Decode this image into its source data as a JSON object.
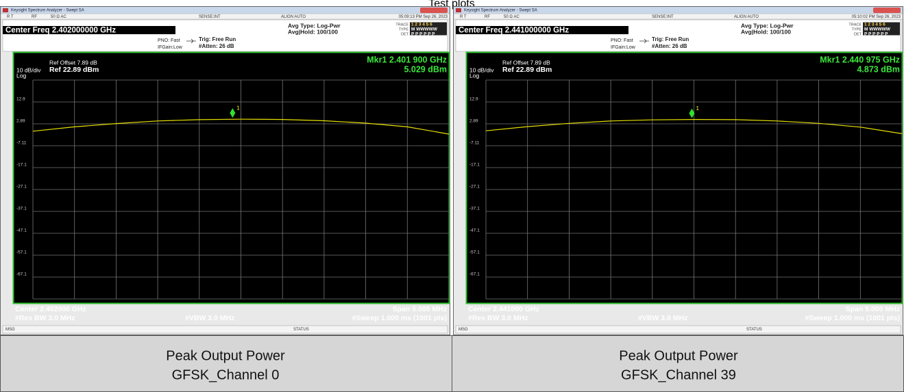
{
  "title": "Test plots",
  "panels": [
    {
      "window_title": "Keysight Spectrum Analyzer - Swept SA",
      "status_bar": [
        "R T",
        "RF",
        "50 Ω  AC",
        "SENSE:INT",
        "ALIGN AUTO",
        "05:09:13 PM Sep 26, 2023"
      ],
      "center_freq": "Center Freq 2.402000000 GHz",
      "settings": [
        "PNO: Fast",
        "IFGain:Low",
        "Trig: Free Run",
        "#Atten: 26 dB",
        "Avg Type: Log-Pwr",
        "Avg|Hold: 100/100"
      ],
      "trace_header": [
        "TRACE",
        "TYPE",
        "DET"
      ],
      "trace_rows": [
        "1 2 3 4 5 6",
        "M WWWWW",
        "P P P P P P"
      ],
      "chart": {
        "type": "line",
        "scale": "10 dB/div",
        "scale_type": "Log",
        "ref_offset": "Ref Offset 7.89 dB",
        "ref_level": "Ref 22.89 dBm",
        "xlim": [
          -2.5,
          2.5
        ],
        "xticks": [
          -2.5,
          -2,
          -1.5,
          -1,
          -0.5,
          0,
          0.5,
          1,
          1.5,
          2,
          2.5
        ],
        "ylim": [
          -77.11,
          22.89
        ],
        "yticks": [
          {
            "value": 12.89,
            "label": "12.9"
          },
          2.89,
          -7.11,
          {
            "value": -17.11,
            "label": "-17.1"
          },
          {
            "value": -27.11,
            "label": "-27.1"
          },
          {
            "value": -37.11,
            "label": "-37.1"
          },
          {
            "value": -47.11,
            "label": "-47.1"
          },
          {
            "value": -57.11,
            "label": "-57.1"
          },
          {
            "value": -67.11,
            "label": "-67.1"
          }
        ],
        "x": [
          -2.5,
          -2,
          -1.5,
          -1,
          -0.5,
          0,
          0.5,
          1,
          1.5,
          2,
          2.5
        ],
        "values": [
          -0.5,
          1.5,
          3,
          4.2,
          4.8,
          5.0,
          4.9,
          4.3,
          3.2,
          1.5,
          -1.8
        ],
        "color": "#e8e000",
        "marker": {
          "name": "1",
          "label": "Mkr1 2.401 900 GHz",
          "x": -0.1,
          "value": 5.029,
          "value_label": "5.029 dBm"
        }
      },
      "center": "Center 2.402000 GHz",
      "span": "Span 5.000 MHz",
      "res_bw": "#Res BW 3.0 MHz",
      "vbw": "#VBW 3.0 MHz",
      "sweep": "#Sweep  1.000 ms (1001 pts)",
      "msg": "MSG",
      "status": "STATUS",
      "caption": [
        "Peak Output Power",
        "GFSK_Channel 0"
      ]
    },
    {
      "window_title": "Keysight Spectrum Analyzer - Swept SA",
      "status_bar": [
        "R T",
        "RF",
        "50 Ω  AC",
        "SENSE:INT",
        "ALIGN AUTO",
        "05:10:02 PM Sep 26, 2023"
      ],
      "center_freq": "Center Freq 2.441000000 GHz",
      "settings": [
        "PNO: Fast",
        "IFGain:Low",
        "Trig: Free Run",
        "#Atten: 26 dB",
        "Avg Type: Log-Pwr",
        "Avg|Hold: 100/100"
      ],
      "trace_header": [
        "TRACE",
        "TYPE",
        "DET"
      ],
      "trace_rows": [
        "1 2 3 4 5 6",
        "M WWWWW",
        "P P P P P P"
      ],
      "chart": {
        "type": "line",
        "scale": "10 dB/div",
        "scale_type": "Log",
        "ref_offset": "Ref Offset 7.89 dB",
        "ref_level": "Ref 22.89 dBm",
        "xlim": [
          -2.5,
          2.5
        ],
        "xticks": [
          -2.5,
          -2,
          -1.5,
          -1,
          -0.5,
          0,
          0.5,
          1,
          1.5,
          2,
          2.5
        ],
        "ylim": [
          -77.11,
          22.89
        ],
        "yticks": [
          {
            "value": 12.89,
            "label": "12.9"
          },
          2.89,
          -7.11,
          {
            "value": -17.11,
            "label": "-17.1"
          },
          {
            "value": -27.11,
            "label": "-27.1"
          },
          {
            "value": -37.11,
            "label": "-37.1"
          },
          {
            "value": -47.11,
            "label": "-47.1"
          },
          {
            "value": -57.11,
            "label": "-57.1"
          },
          {
            "value": -67.11,
            "label": "-67.1"
          }
        ],
        "x": [
          -2.5,
          -2,
          -1.5,
          -1,
          -0.5,
          0,
          0.5,
          1,
          1.5,
          2,
          2.5
        ],
        "values": [
          -0.3,
          1.6,
          3.1,
          4.2,
          4.7,
          4.9,
          4.8,
          4.2,
          3.1,
          1.4,
          -1.6
        ],
        "color": "#e8e000",
        "marker": {
          "name": "1",
          "label": "Mkr1 2.440 975 GHz",
          "x": -0.025,
          "value": 4.873,
          "value_label": "4.873 dBm"
        }
      },
      "center": "Center 2.441000 GHz",
      "span": "Span 5.000 MHz",
      "res_bw": "#Res BW 3.0 MHz",
      "vbw": "#VBW 3.0 MHz",
      "sweep": "#Sweep  1.000 ms (1001 pts)",
      "msg": "MSG",
      "status": "STATUS",
      "caption": [
        "Peak Output Power",
        "GFSK_Channel 39"
      ]
    }
  ]
}
